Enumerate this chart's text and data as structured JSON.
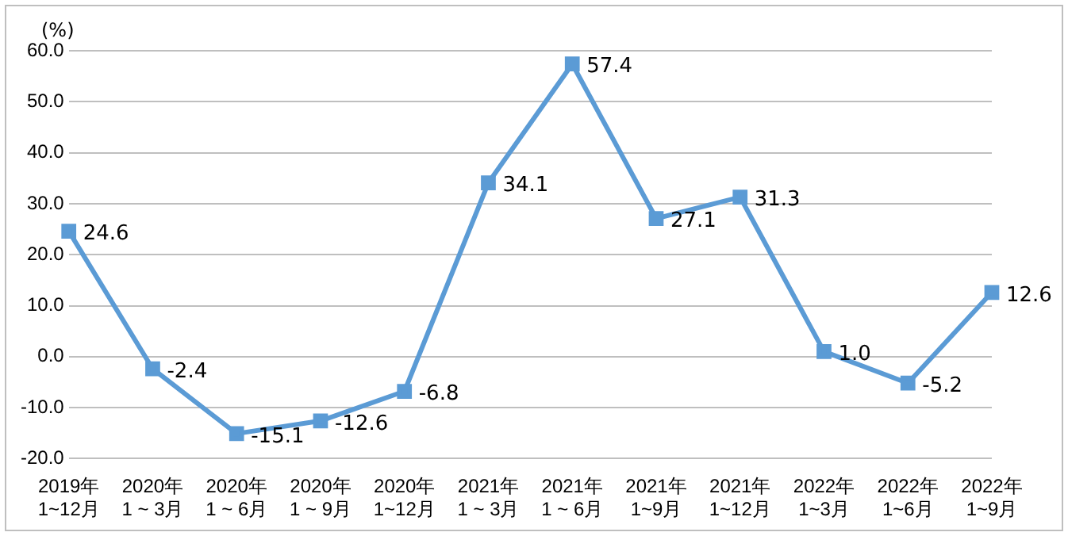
{
  "chart_data": {
    "type": "line",
    "ylabel": "(%)",
    "categories": [
      "2019年\n1~12月",
      "2020年\n1 ~ 3月",
      "2020年\n1 ~ 6月",
      "2020年\n1 ~ 9月",
      "2020年\n1~12月",
      "2021年\n1 ~ 3月",
      "2021年\n1 ~ 6月",
      "2021年\n1~9月",
      "2021年\n1~12月",
      "2022年\n1~3月",
      "2022年\n1~6月",
      "2022年\n1~9月"
    ],
    "series": [
      {
        "color": "#5b9bd5",
        "values": [
          24.6,
          -2.4,
          -15.1,
          -12.6,
          -6.8,
          34.1,
          57.4,
          27.1,
          31.3,
          1.0,
          -5.2,
          12.6
        ],
        "value_labels": [
          "24.6",
          "-2.4",
          "-15.1",
          "-12.6",
          "-6.8",
          "34.1",
          "57.4",
          "27.1",
          "31.3",
          "1.0",
          "-5.2",
          "12.6"
        ]
      }
    ],
    "ylim": [
      -20,
      60
    ],
    "yticks": [
      {
        "value": -20,
        "label": "-20.0"
      },
      {
        "value": -10,
        "label": "-10.0"
      },
      {
        "value": 0,
        "label": "0.0"
      },
      {
        "value": 10,
        "label": "10.0"
      },
      {
        "value": 20,
        "label": "20.0"
      },
      {
        "value": 30,
        "label": "30.0"
      },
      {
        "value": 40,
        "label": "40.0"
      },
      {
        "value": 50,
        "label": "50.0"
      },
      {
        "value": 60,
        "label": "60.0"
      }
    ],
    "grid": "y",
    "legend": false,
    "marker": "square",
    "line_style": "solid"
  }
}
